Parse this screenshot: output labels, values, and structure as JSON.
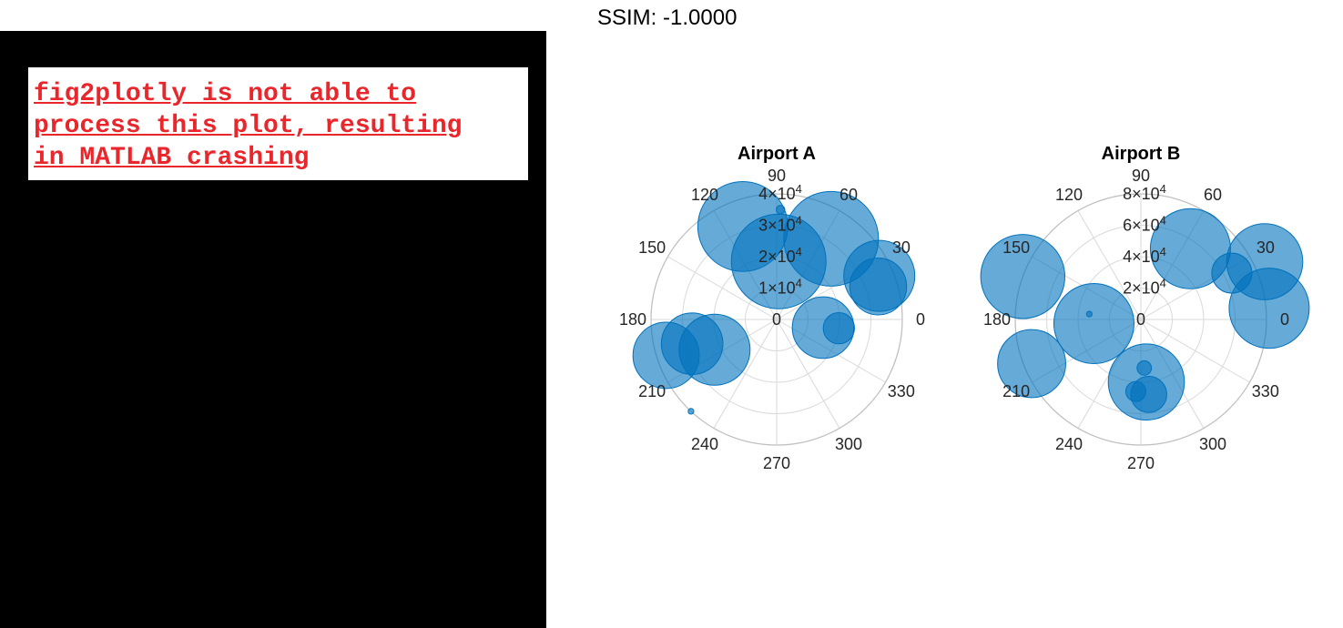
{
  "header": {
    "ssim_label": "SSIM: -1.0000"
  },
  "error_panel": {
    "message": "fig2plotly is not able to\nprocess this plot, resulting\nin MATLAB crashing"
  },
  "colors": {
    "bubble_fill": "#0072bd",
    "grid": "#d9d9d9",
    "outer_ring": "#bfbfbf"
  },
  "chart_data": [
    {
      "type": "scatter",
      "subtype": "polar-bubble",
      "title": "Airport A",
      "theta_ticks": [
        "0",
        "30",
        "60",
        "90",
        "120",
        "150",
        "180",
        "210",
        "240",
        "270",
        "300",
        "330"
      ],
      "r_ticks": [
        {
          "value": 0,
          "label": "0"
        },
        {
          "value": 10000,
          "label": "1×10",
          "exp": "4"
        },
        {
          "value": 20000,
          "label": "2×10",
          "exp": "4"
        },
        {
          "value": 30000,
          "label": "3×10",
          "exp": "4"
        },
        {
          "value": 40000,
          "label": "4×10",
          "exp": "4"
        }
      ],
      "rlim": [
        0,
        40000
      ],
      "grid": true,
      "points": [
        {
          "theta": 110,
          "r": 31500,
          "size": 0.95
        },
        {
          "theta": 88,
          "r": 18500,
          "size": 1.0
        },
        {
          "theta": 56,
          "r": 31000,
          "size": 1.0
        },
        {
          "theta": 23,
          "r": 35500,
          "size": 0.75
        },
        {
          "theta": 18,
          "r": 34000,
          "size": 0.6
        },
        {
          "theta": -10,
          "r": 15000,
          "size": 0.65
        },
        {
          "theta": -8,
          "r": 20000,
          "size": 0.33
        },
        {
          "theta": -154,
          "r": 22000,
          "size": 0.75
        },
        {
          "theta": -164,
          "r": 28000,
          "size": 0.65
        },
        {
          "theta": -162,
          "r": 37000,
          "size": 0.7
        },
        {
          "theta": 88,
          "r": 35000,
          "size": 0.09
        },
        {
          "theta": -133,
          "r": 40000,
          "size": 0.06
        }
      ]
    },
    {
      "type": "scatter",
      "subtype": "polar-bubble",
      "title": "Airport B",
      "theta_ticks": [
        "0",
        "30",
        "60",
        "90",
        "120",
        "150",
        "180",
        "210",
        "240",
        "270",
        "300",
        "330"
      ],
      "r_ticks": [
        {
          "value": 0,
          "label": "0"
        },
        {
          "value": 20000,
          "label": "2×10",
          "exp": "4"
        },
        {
          "value": 40000,
          "label": "4×10",
          "exp": "4"
        },
        {
          "value": 60000,
          "label": "6×10",
          "exp": "4"
        },
        {
          "value": 80000,
          "label": "8×10",
          "exp": "4"
        }
      ],
      "rlim": [
        0,
        80000
      ],
      "grid": true,
      "points": [
        {
          "theta": 55,
          "r": 55000,
          "size": 1.0
        },
        {
          "theta": 25,
          "r": 87000,
          "size": 0.95
        },
        {
          "theta": 27,
          "r": 65000,
          "size": 0.5
        },
        {
          "theta": 5,
          "r": 82000,
          "size": 1.0
        },
        {
          "theta": 160,
          "r": 80000,
          "size": 1.05
        },
        {
          "theta": -158,
          "r": 75000,
          "size": 0.85
        },
        {
          "theta": -175,
          "r": 30000,
          "size": 1.0
        },
        {
          "theta": 174,
          "r": 33000,
          "size": 0.07
        },
        {
          "theta": -85,
          "r": 40000,
          "size": 0.95
        },
        {
          "theta": -84,
          "r": 48000,
          "size": 0.45
        },
        {
          "theta": -94,
          "r": 46000,
          "size": 0.25
        },
        {
          "theta": -86,
          "r": 31000,
          "size": 0.18
        }
      ]
    }
  ]
}
